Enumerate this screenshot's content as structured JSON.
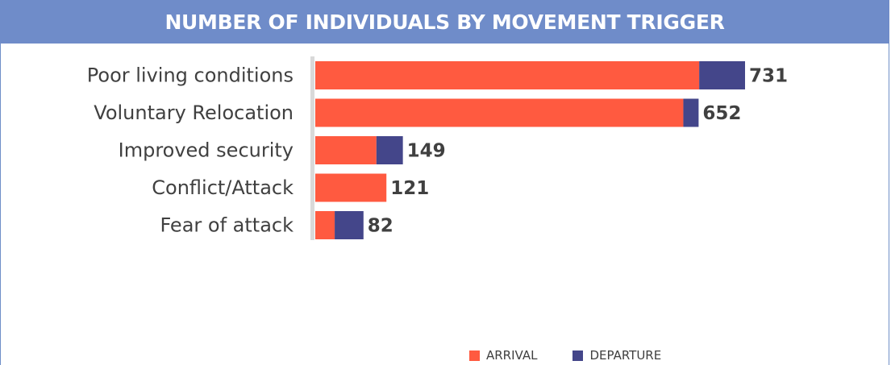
{
  "chart_data": {
    "type": "bar",
    "orientation": "horizontal",
    "stacked": true,
    "title": "NUMBER OF INDIVIDUALS BY MOVEMENT TRIGGER",
    "categories": [
      "Poor living conditions",
      "Voluntary Relocation",
      "Improved security",
      "Conflict/Attack",
      "Fear of attack"
    ],
    "series": [
      {
        "name": "ARRIVAL",
        "color": "#ff5a40",
        "values": [
          653,
          626,
          104,
          121,
          33
        ]
      },
      {
        "name": "DEPARTURE",
        "color": "#44468a",
        "values": [
          78,
          26,
          45,
          0,
          49
        ]
      }
    ],
    "totals": [
      "731",
      "652",
      "149",
      "121",
      "82"
    ],
    "xlim": [
      0,
      731
    ],
    "grid": false,
    "legend_position": "bottom"
  }
}
